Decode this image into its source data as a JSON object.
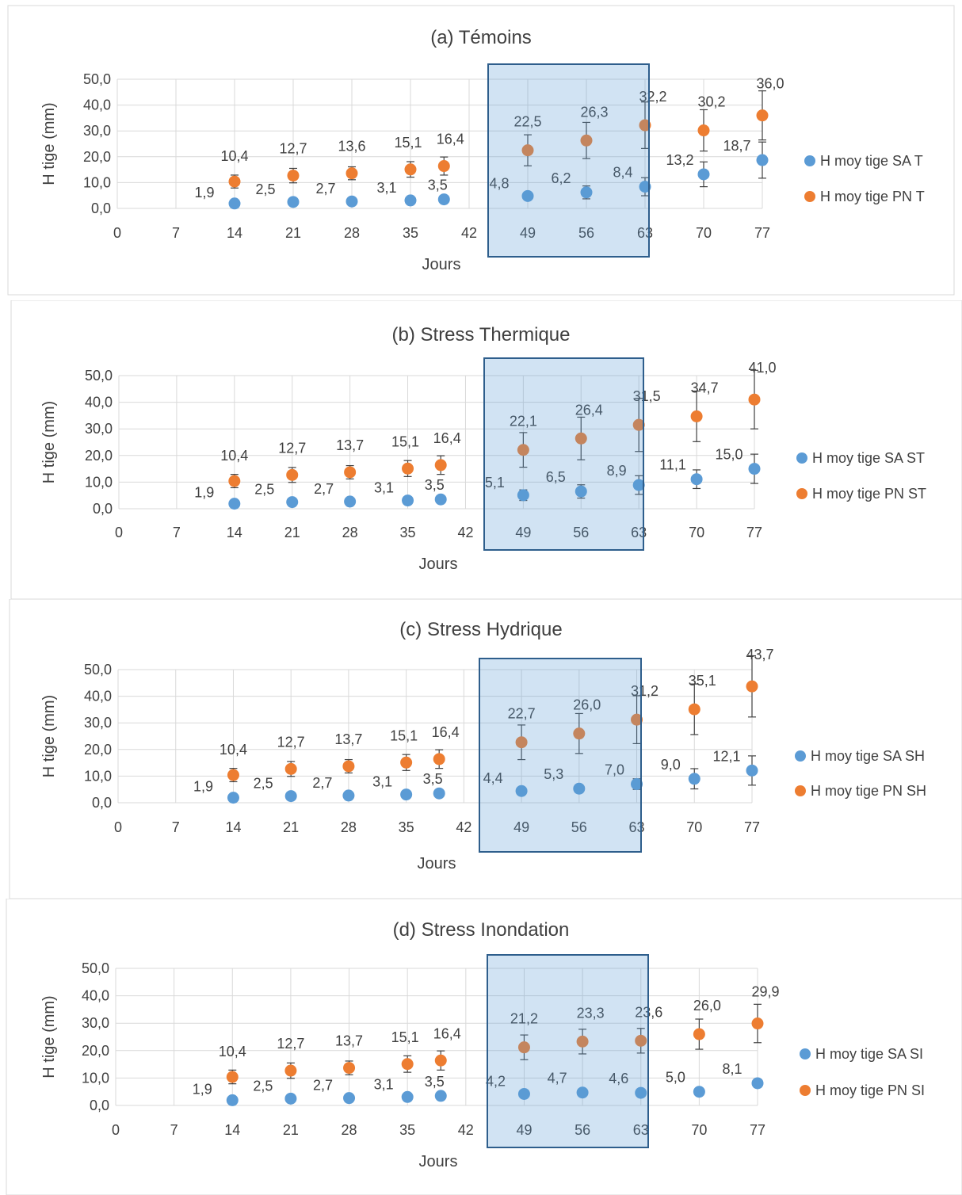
{
  "chart_data": [
    {
      "type": "scatter",
      "title": "(a) Témoins",
      "xlabel": "Jours",
      "ylabel": "H tige (mm)",
      "xlim": [
        0,
        77
      ],
      "ylim": [
        0,
        50
      ],
      "x_ticks": [
        "0",
        "7",
        "14",
        "21",
        "28",
        "35",
        "42",
        "49",
        "56",
        "63",
        "70",
        "77"
      ],
      "y_ticks": [
        "0,0",
        "10,0",
        "20,0",
        "30,0",
        "40,0",
        "50,0"
      ],
      "grid": true,
      "legend_position": "right",
      "highlight_range": [
        43,
        64
      ],
      "series": [
        {
          "name": "H moy tige SA T",
          "color": "#5B9BD5",
          "x": [
            14,
            21,
            28,
            35,
            39,
            49,
            56,
            63,
            70,
            77
          ],
          "y": [
            1.9,
            2.5,
            2.7,
            3.1,
            3.5,
            4.8,
            6.2,
            8.4,
            13.2,
            18.7
          ],
          "err": [
            0.4,
            0.5,
            0.5,
            0.6,
            0.6,
            1.2,
            2.5,
            3.5,
            4.8,
            7.0
          ],
          "labels": [
            "1,9",
            "2,5",
            "2,7",
            "3,1",
            "3,5",
            "4,8",
            "6,2",
            "8,4",
            "13,2",
            "18,7"
          ]
        },
        {
          "name": "H moy tige PN T",
          "color": "#ED7D31",
          "x": [
            14,
            21,
            28,
            35,
            39,
            49,
            56,
            63,
            70,
            77
          ],
          "y": [
            10.4,
            12.7,
            13.6,
            15.1,
            16.4,
            22.5,
            26.3,
            32.2,
            30.2,
            36.0
          ],
          "err": [
            2.5,
            2.8,
            2.5,
            3.0,
            3.5,
            6.0,
            7.0,
            9.0,
            8.0,
            9.5
          ],
          "labels": [
            "10,4",
            "12,7",
            "13,6",
            "15,1",
            "16,4",
            "22,5",
            "26,3",
            "32,2",
            "30,2",
            "36,0"
          ]
        }
      ]
    },
    {
      "type": "scatter",
      "title": "(b) Stress Thermique",
      "xlabel": "Jours",
      "ylabel": "H tige (mm)",
      "xlim": [
        0,
        77
      ],
      "ylim": [
        0,
        50
      ],
      "x_ticks": [
        "0",
        "7",
        "14",
        "21",
        "28",
        "35",
        "42",
        "49",
        "56",
        "63",
        "70",
        "77"
      ],
      "y_ticks": [
        "0,0",
        "10,0",
        "20,0",
        "30,0",
        "40,0",
        "50,0"
      ],
      "grid": true,
      "legend_position": "right",
      "highlight_range": [
        44,
        64
      ],
      "series": [
        {
          "name": "H moy tige SA ST",
          "color": "#5B9BD5",
          "x": [
            14,
            21,
            28,
            35,
            39,
            49,
            56,
            63,
            70,
            77
          ],
          "y": [
            1.9,
            2.5,
            2.7,
            3.1,
            3.5,
            5.1,
            6.5,
            8.9,
            11.1,
            15.0
          ],
          "err": [
            0.4,
            0.5,
            0.5,
            0.6,
            0.6,
            2.0,
            2.5,
            3.5,
            3.5,
            5.5
          ],
          "labels": [
            "1,9",
            "2,5",
            "2,7",
            "3,1",
            "3,5",
            "5,1",
            "6,5",
            "8,9",
            "11,1",
            "15,0"
          ]
        },
        {
          "name": "H moy tige PN ST",
          "color": "#ED7D31",
          "x": [
            14,
            21,
            28,
            35,
            39,
            49,
            56,
            63,
            70,
            77
          ],
          "y": [
            10.4,
            12.7,
            13.7,
            15.1,
            16.4,
            22.1,
            26.4,
            31.5,
            34.7,
            41.0
          ],
          "err": [
            2.5,
            2.8,
            2.5,
            3.0,
            3.5,
            6.5,
            8.0,
            10.0,
            9.5,
            11.0
          ],
          "labels": [
            "10,4",
            "12,7",
            "13,7",
            "15,1",
            "16,4",
            "22,1",
            "26,4",
            "31,5",
            "34,7",
            "41,0"
          ]
        }
      ]
    },
    {
      "type": "scatter",
      "title": "(c) Stress Hydrique",
      "xlabel": "Jours",
      "ylabel": "H tige (mm)",
      "xlim": [
        0,
        77
      ],
      "ylim": [
        0,
        50
      ],
      "x_ticks": [
        "0",
        "7",
        "14",
        "21",
        "28",
        "35",
        "42",
        "49",
        "56",
        "63",
        "70",
        "77"
      ],
      "y_ticks": [
        "0,0",
        "10,0",
        "20,0",
        "30,0",
        "40,0",
        "50,0"
      ],
      "grid": true,
      "legend_position": "right",
      "highlight_range": [
        44,
        63
      ],
      "series": [
        {
          "name": "H moy tige SA SH",
          "color": "#5B9BD5",
          "x": [
            14,
            21,
            28,
            35,
            39,
            49,
            56,
            63,
            70,
            77
          ],
          "y": [
            1.9,
            2.5,
            2.7,
            3.1,
            3.5,
            4.4,
            5.3,
            7.0,
            9.0,
            12.1
          ],
          "err": [
            0.4,
            0.5,
            0.5,
            0.6,
            0.6,
            1.2,
            1.5,
            2.0,
            3.8,
            5.5
          ],
          "labels": [
            "1,9",
            "2,5",
            "2,7",
            "3,1",
            "3,5",
            "4,4",
            "5,3",
            "7,0",
            "9,0",
            "12,1"
          ]
        },
        {
          "name": "H moy tige PN SH",
          "color": "#ED7D31",
          "x": [
            14,
            21,
            28,
            35,
            39,
            49,
            56,
            63,
            70,
            77
          ],
          "y": [
            10.4,
            12.7,
            13.7,
            15.1,
            16.4,
            22.7,
            26.0,
            31.2,
            35.1,
            43.7
          ],
          "err": [
            2.5,
            2.8,
            2.5,
            3.0,
            3.5,
            6.5,
            7.5,
            9.0,
            9.5,
            11.5
          ],
          "labels": [
            "10,4",
            "12,7",
            "13,7",
            "15,1",
            "16,4",
            "22,7",
            "26,0",
            "31,2",
            "35,1",
            "43,7"
          ]
        }
      ]
    },
    {
      "type": "scatter",
      "title": "(d) Stress Inondation",
      "xlabel": "Jours",
      "ylabel": "H tige (mm)",
      "xlim": [
        0,
        77
      ],
      "ylim": [
        0,
        50
      ],
      "x_ticks": [
        "0",
        "7",
        "14",
        "21",
        "28",
        "35",
        "42",
        "49",
        "56",
        "63",
        "70",
        "77"
      ],
      "y_ticks": [
        "0,0",
        "10,0",
        "20,0",
        "30,0",
        "40,0",
        "50,0"
      ],
      "grid": true,
      "legend_position": "right",
      "highlight_range": [
        45,
        64
      ],
      "series": [
        {
          "name": "H moy tige SA SI",
          "color": "#5B9BD5",
          "x": [
            14,
            21,
            28,
            35,
            39,
            49,
            56,
            63,
            70,
            77
          ],
          "y": [
            1.9,
            2.5,
            2.7,
            3.1,
            3.5,
            4.2,
            4.7,
            4.6,
            5.0,
            8.1
          ],
          "err": [
            0.4,
            0.5,
            0.5,
            0.6,
            0.6,
            0.0,
            0.0,
            0.0,
            0.0,
            1.5
          ],
          "labels": [
            "1,9",
            "2,5",
            "2,7",
            "3,1",
            "3,5",
            "4,2",
            "4,7",
            "4,6",
            "5,0",
            "8,1"
          ]
        },
        {
          "name": "H moy tige PN SI",
          "color": "#ED7D31",
          "x": [
            14,
            21,
            28,
            35,
            39,
            49,
            56,
            63,
            70,
            77
          ],
          "y": [
            10.4,
            12.7,
            13.7,
            15.1,
            16.4,
            21.2,
            23.3,
            23.6,
            26.0,
            29.9
          ],
          "err": [
            2.5,
            2.8,
            2.5,
            3.0,
            3.5,
            4.5,
            4.5,
            4.5,
            5.5,
            7.0
          ],
          "labels": [
            "10,4",
            "12,7",
            "13,7",
            "15,1",
            "16,4",
            "21,2",
            "23,3",
            "23,6",
            "26,0",
            "29,9"
          ]
        }
      ]
    }
  ]
}
